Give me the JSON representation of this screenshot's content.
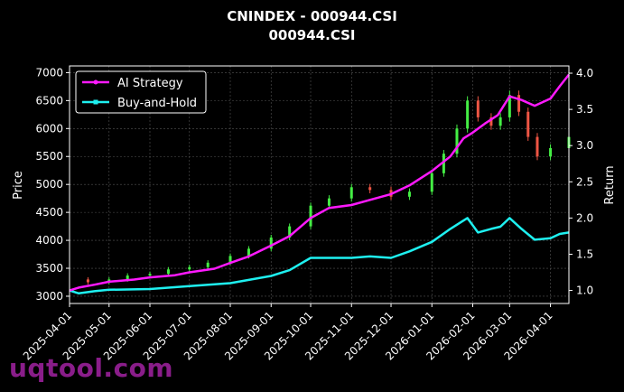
{
  "title": "CNINDEX - 000944.CSI",
  "subtitle": "000944.CSI",
  "watermark": "uqtool.com",
  "colors": {
    "background": "#000000",
    "ai_strategy": "#ff19ff",
    "buy_and_hold": "#1ef0f0",
    "candle_up": "#44ee44",
    "candle_down": "#ee5544",
    "grid": "#555555"
  },
  "chart_data": {
    "type": "line",
    "title": "CNINDEX - 000944.CSI",
    "subtitle": "000944.CSI",
    "ylabel": "Price",
    "y2label": "Return",
    "xlim": [
      "2025-04-01",
      "2026-04-15"
    ],
    "ylim": [
      2870,
      7120
    ],
    "y2lim": [
      0.82,
      4.1
    ],
    "y_ticks": [
      3000,
      3500,
      4000,
      4500,
      5000,
      5500,
      6000,
      6500,
      7000
    ],
    "y2_ticks": [
      "1.0",
      "1.5",
      "2.0",
      "2.5",
      "3.0",
      "3.5",
      "4.0"
    ],
    "x_ticks": [
      "2025-04-01",
      "2025-05-01",
      "2025-06-01",
      "2025-07-01",
      "2025-08-01",
      "2025-09-01",
      "2025-10-01",
      "2025-11-01",
      "2025-12-01",
      "2026-01-01",
      "2026-02-01",
      "2026-03-01",
      "2026-04-01"
    ],
    "grid": true,
    "legend_position": "top-left",
    "series": [
      {
        "name": "AI Strategy",
        "axis": "right",
        "x": [
          "2025-04-01",
          "2025-04-08",
          "2025-04-20",
          "2025-05-01",
          "2025-05-20",
          "2025-06-01",
          "2025-06-20",
          "2025-07-01",
          "2025-07-20",
          "2025-08-01",
          "2025-08-15",
          "2025-09-01",
          "2025-09-15",
          "2025-10-01",
          "2025-10-15",
          "2025-11-01",
          "2025-11-15",
          "2025-12-01",
          "2025-12-15",
          "2026-01-01",
          "2026-01-15",
          "2026-01-25",
          "2026-02-01",
          "2026-02-10",
          "2026-02-20",
          "2026-03-01",
          "2026-03-10",
          "2026-03-20",
          "2026-04-01",
          "2026-04-08",
          "2026-04-15"
        ],
        "values": [
          1.0,
          1.04,
          1.08,
          1.12,
          1.15,
          1.18,
          1.21,
          1.25,
          1.3,
          1.38,
          1.47,
          1.62,
          1.75,
          2.0,
          2.14,
          2.18,
          2.25,
          2.33,
          2.45,
          2.65,
          2.85,
          3.1,
          3.18,
          3.3,
          3.42,
          3.68,
          3.63,
          3.55,
          3.65,
          3.82,
          3.98
        ]
      },
      {
        "name": "Buy-and-Hold",
        "axis": "right",
        "x": [
          "2025-04-01",
          "2025-04-08",
          "2025-04-20",
          "2025-05-01",
          "2025-06-01",
          "2025-07-01",
          "2025-08-01",
          "2025-09-01",
          "2025-09-15",
          "2025-10-01",
          "2025-10-15",
          "2025-11-01",
          "2025-11-15",
          "2025-12-01",
          "2025-12-15",
          "2026-01-01",
          "2026-01-15",
          "2026-01-28",
          "2026-02-05",
          "2026-02-15",
          "2026-02-22",
          "2026-03-01",
          "2026-03-10",
          "2026-03-20",
          "2026-04-01",
          "2026-04-08",
          "2026-04-15"
        ],
        "values": [
          1.0,
          0.96,
          0.99,
          1.01,
          1.02,
          1.06,
          1.1,
          1.2,
          1.28,
          1.45,
          1.45,
          1.45,
          1.47,
          1.45,
          1.54,
          1.67,
          1.85,
          2.0,
          1.8,
          1.85,
          1.88,
          2.0,
          1.85,
          1.7,
          1.72,
          1.78,
          1.8
        ]
      },
      {
        "name": "Price",
        "axis": "left",
        "type": "candlestick",
        "x": [
          "2025-04-01",
          "2025-04-15",
          "2025-05-01",
          "2025-05-15",
          "2025-06-01",
          "2025-06-15",
          "2025-07-01",
          "2025-07-15",
          "2025-08-01",
          "2025-08-15",
          "2025-09-01",
          "2025-09-15",
          "2025-10-01",
          "2025-10-15",
          "2025-11-01",
          "2025-11-15",
          "2025-12-01",
          "2025-12-15",
          "2026-01-01",
          "2026-01-10",
          "2026-01-20",
          "2026-01-28",
          "2026-02-05",
          "2026-02-15",
          "2026-02-22",
          "2026-03-01",
          "2026-03-08",
          "2026-03-15",
          "2026-03-22",
          "2026-04-01",
          "2026-04-15"
        ],
        "values": [
          3300,
          3250,
          3300,
          3370,
          3400,
          3480,
          3520,
          3600,
          3720,
          3850,
          4050,
          4250,
          4620,
          4750,
          4950,
          4900,
          4780,
          4870,
          5200,
          5550,
          6000,
          6500,
          6200,
          6050,
          6200,
          6600,
          6300,
          5850,
          5500,
          5650,
          5850
        ]
      }
    ]
  }
}
